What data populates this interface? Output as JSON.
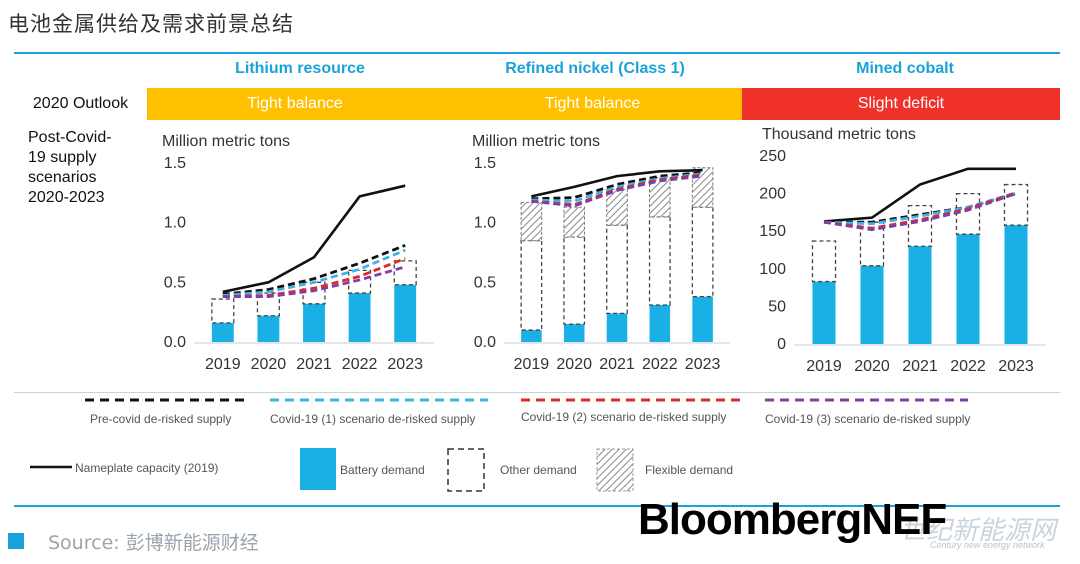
{
  "page_title": "电池金属供给及需求前景总结",
  "row_outlook_label": "2020 Outlook",
  "scenario_label_lines": [
    "Post-Covid-",
    "19 supply",
    "scenarios",
    "2020-2023"
  ],
  "colors": {
    "accent": "#1aa3d8",
    "tight": "#ffc000",
    "deficit": "#f0312a",
    "battery": "#1ab0e6",
    "nameplate": "#111111",
    "precovid": "#111111",
    "covid1": "#3cb4e6",
    "covid2": "#e3262b",
    "covid3": "#7b3fa6"
  },
  "columns": [
    {
      "header": "Lithium resource",
      "outlook": "Tight balance",
      "outlook_color": "tight"
    },
    {
      "header": "Refined nickel (Class 1)",
      "outlook": "Tight balance",
      "outlook_color": "tight"
    },
    {
      "header": "Mined cobalt",
      "outlook": "Slight deficit",
      "outlook_color": "deficit"
    }
  ],
  "legend": {
    "precovid": "Pre-covid de-risked supply",
    "covid1": "Covid-19 (1) scenario de-risked supply",
    "covid2": "Covid-19 (2) scenario de-risked supply",
    "covid3": "Covid-19 (3) scenario de-risked supply",
    "nameplate": "Nameplate capacity (2019)",
    "battery": "Battery demand",
    "other": "Other demand",
    "flexible": "Flexible demand"
  },
  "source": "Source: 彭博新能源财经",
  "brand": "BloombergNEF",
  "watermark": "世纪新能源网",
  "watermark_sub": "Century new energy network",
  "chart_data": [
    {
      "type": "bar",
      "ylabel": "Million metric tons",
      "categories": [
        "2019",
        "2020",
        "2021",
        "2022",
        "2023"
      ],
      "ylim": [
        0,
        1.5
      ],
      "yticks": [
        "0.0",
        "0.5",
        "1.0",
        "1.5"
      ],
      "battery_demand": [
        0.16,
        0.22,
        0.32,
        0.41,
        0.48
      ],
      "other_demand": [
        0.2,
        0.19,
        0.18,
        0.19,
        0.2
      ],
      "flexible_demand": [
        0,
        0,
        0,
        0,
        0
      ],
      "series": [
        {
          "key": "nameplate",
          "name": "Nameplate capacity (2019)",
          "values": [
            0.42,
            0.5,
            0.71,
            1.22,
            1.31
          ]
        },
        {
          "key": "precovid",
          "name": "Pre-covid de-risked supply",
          "values": [
            0.4,
            0.44,
            0.53,
            0.66,
            0.81
          ]
        },
        {
          "key": "covid1",
          "name": "Covid-19 (1) scenario de-risked supply",
          "values": [
            0.39,
            0.42,
            0.5,
            0.61,
            0.77
          ]
        },
        {
          "key": "covid2",
          "name": "Covid-19 (2) scenario de-risked supply",
          "values": [
            0.38,
            0.39,
            0.45,
            0.55,
            0.7
          ]
        },
        {
          "key": "covid3",
          "name": "Covid-19 (3) scenario de-risked supply",
          "values": [
            0.38,
            0.38,
            0.43,
            0.52,
            0.63
          ]
        }
      ]
    },
    {
      "type": "bar",
      "ylabel": "Million metric tons",
      "categories": [
        "2019",
        "2020",
        "2021",
        "2022",
        "2023"
      ],
      "ylim": [
        0,
        1.5
      ],
      "yticks": [
        "0.0",
        "0.5",
        "1.0",
        "1.5"
      ],
      "battery_demand": [
        0.1,
        0.15,
        0.24,
        0.31,
        0.38
      ],
      "other_demand": [
        0.75,
        0.73,
        0.74,
        0.74,
        0.75
      ],
      "flexible_demand": [
        0.32,
        0.25,
        0.3,
        0.33,
        0.33
      ],
      "series": [
        {
          "key": "nameplate",
          "name": "Nameplate capacity (2019)",
          "values": [
            1.22,
            1.3,
            1.39,
            1.43,
            1.44
          ]
        },
        {
          "key": "precovid",
          "name": "Pre-covid de-risked supply",
          "values": [
            1.2,
            1.21,
            1.32,
            1.39,
            1.42
          ]
        },
        {
          "key": "covid1",
          "name": "Covid-19 (1) scenario de-risked supply",
          "values": [
            1.19,
            1.18,
            1.3,
            1.37,
            1.41
          ]
        },
        {
          "key": "covid2",
          "name": "Covid-19 (2) scenario de-risked supply",
          "values": [
            1.18,
            1.15,
            1.28,
            1.36,
            1.4
          ]
        },
        {
          "key": "covid3",
          "name": "Covid-19 (3) scenario de-risked supply",
          "values": [
            1.18,
            1.14,
            1.27,
            1.35,
            1.39
          ]
        }
      ]
    },
    {
      "type": "bar",
      "ylabel": "Thousand metric tons",
      "categories": [
        "2019",
        "2020",
        "2021",
        "2022",
        "2023"
      ],
      "ylim": [
        0,
        250
      ],
      "yticks": [
        "0",
        "50",
        "100",
        "150",
        "200",
        "250"
      ],
      "battery_demand": [
        83,
        104,
        130,
        146,
        158
      ],
      "other_demand": [
        54,
        58,
        54,
        54,
        54
      ],
      "flexible_demand": [
        0,
        0,
        0,
        0,
        0
      ],
      "series": [
        {
          "key": "nameplate",
          "name": "Nameplate capacity (2019)",
          "values": [
            163,
            168,
            212,
            233,
            233
          ]
        },
        {
          "key": "precovid",
          "name": "Pre-covid de-risked supply",
          "values": [
            162,
            162,
            172,
            182,
            200
          ]
        },
        {
          "key": "covid1",
          "name": "Covid-19 (1) scenario de-risked supply",
          "values": [
            162,
            160,
            170,
            182,
            201
          ]
        },
        {
          "key": "covid2",
          "name": "Covid-19 (2) scenario de-risked supply",
          "values": [
            162,
            154,
            165,
            180,
            201
          ]
        },
        {
          "key": "covid3",
          "name": "Covid-19 (3) scenario de-risked supply",
          "values": [
            162,
            152,
            163,
            178,
            200
          ]
        }
      ]
    }
  ]
}
